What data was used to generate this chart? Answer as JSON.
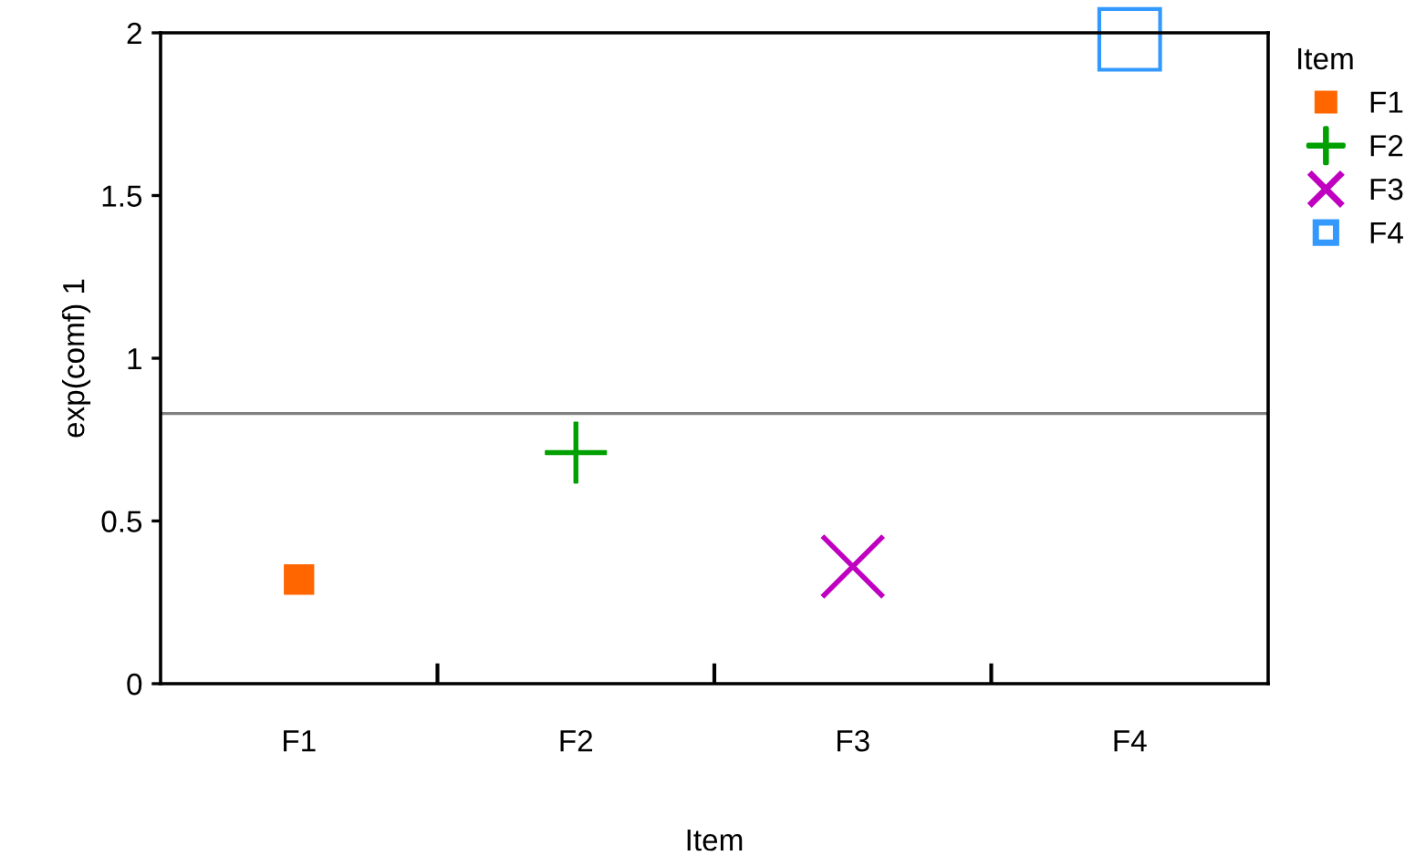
{
  "chart_data": {
    "type": "scatter",
    "xlabel": "Item",
    "ylabel": "exp(comf) 1",
    "legend_title": "Item",
    "legend": "top right",
    "categories": [
      "F1",
      "F2",
      "F3",
      "F4"
    ],
    "ylim": [
      0,
      2
    ],
    "yticks": [
      0,
      0.5,
      1,
      1.5,
      2
    ],
    "grid": false,
    "ref_lines": [
      {
        "axis": "y",
        "value": 0.83,
        "color": "#808080"
      }
    ],
    "series": [
      {
        "name": "F1",
        "color": "#ff6600",
        "marker": "square",
        "x": [
          "F1"
        ],
        "values": [
          0.32
        ]
      },
      {
        "name": "F2",
        "color": "#00a000",
        "marker": "cross",
        "x": [
          "F2"
        ],
        "values": [
          0.71
        ]
      },
      {
        "name": "F3",
        "color": "#c000c0",
        "marker": "x",
        "x": [
          "F3"
        ],
        "values": [
          0.36
        ]
      },
      {
        "name": "F4",
        "color": "#3399ff",
        "marker": "square",
        "x": [
          "F4"
        ],
        "values": [
          1.98
        ]
      }
    ]
  }
}
